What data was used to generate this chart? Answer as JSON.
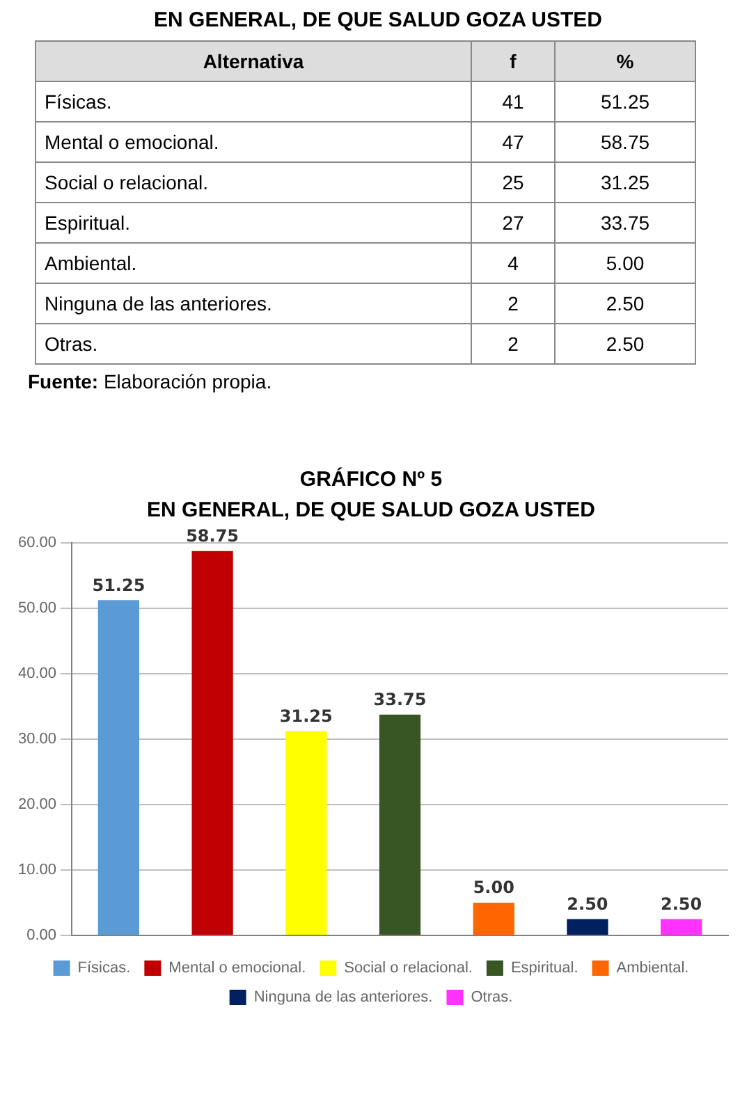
{
  "chart_data": [
    {
      "type": "bar",
      "title": "GRÁFICO Nº 5",
      "subtitle": "EN GENERAL, DE QUE SALUD GOZA USTED",
      "categories": [
        null,
        null,
        null,
        null,
        null,
        null,
        null
      ],
      "series": [
        {
          "name": "Físicas.",
          "color": "#5b9bd5",
          "values": [
            51.25,
            null,
            null,
            null,
            null,
            null,
            null
          ],
          "value_labels": [
            "51.25",
            null,
            null,
            null,
            null,
            null,
            null
          ]
        },
        {
          "name": "Mental o emocional.",
          "color": "#c00000",
          "values": [
            null,
            58.75,
            null,
            null,
            null,
            null,
            null
          ],
          "value_labels": [
            null,
            "58.75",
            null,
            null,
            null,
            null,
            null
          ]
        },
        {
          "name": "Social o relacional.",
          "color": "#ffff00",
          "values": [
            null,
            null,
            31.25,
            null,
            null,
            null,
            null
          ],
          "value_labels": [
            null,
            null,
            "31.25",
            null,
            null,
            null,
            null
          ]
        },
        {
          "name": "Espiritual.",
          "color": "#375623",
          "values": [
            null,
            null,
            null,
            33.75,
            null,
            null,
            null
          ],
          "value_labels": [
            null,
            null,
            null,
            "33.75",
            null,
            null,
            null
          ]
        },
        {
          "name": "Ambiental.",
          "color": "#ff6600",
          "values": [
            null,
            null,
            null,
            null,
            5,
            null,
            null
          ],
          "value_labels": [
            null,
            null,
            null,
            null,
            "5.00",
            null,
            null
          ]
        },
        {
          "name": "Ninguna de las anteriores.",
          "color": "#002060",
          "values": [
            null,
            null,
            null,
            null,
            null,
            2.5,
            null
          ],
          "value_labels": [
            null,
            null,
            null,
            null,
            null,
            "2.50",
            null
          ]
        },
        {
          "name": "Otras.",
          "color": "#ff33ff",
          "values": [
            null,
            null,
            null,
            null,
            null,
            null,
            2.5
          ],
          "value_labels": [
            null,
            null,
            null,
            null,
            null,
            null,
            "2.50"
          ]
        }
      ],
      "ylim": [
        0,
        60
      ],
      "yticks": [
        {
          "value": 0,
          "label": "0.00"
        },
        {
          "value": 10,
          "label": "10.00"
        },
        {
          "value": 20,
          "label": "20.00"
        },
        {
          "value": 30,
          "label": "30.00"
        },
        {
          "value": 40,
          "label": "40.00"
        },
        {
          "value": 50,
          "label": "50.00"
        },
        {
          "value": 60,
          "label": "60.00"
        }
      ],
      "grid": "y",
      "legend": "bottom",
      "tick_labels": "y"
    },
    {
      "type": "other",
      "title": "EN GENERAL, DE QUE SALUD GOZA USTED",
      "annotations": [
        "Alternativa",
        "f",
        "%",
        "Físicas.",
        "41",
        "51.25",
        "Mental o emocional.",
        "47",
        "58.75",
        "Social o relacional.",
        "25",
        "31.25",
        "Espiritual.",
        "27",
        "33.75",
        "Ambiental.",
        "4",
        "5.00",
        "Ninguna de las anteriores.",
        "2",
        "2.50",
        "Otras.",
        "2",
        "2.50",
        "Fuente: Elaboración propia."
      ]
    }
  ]
}
